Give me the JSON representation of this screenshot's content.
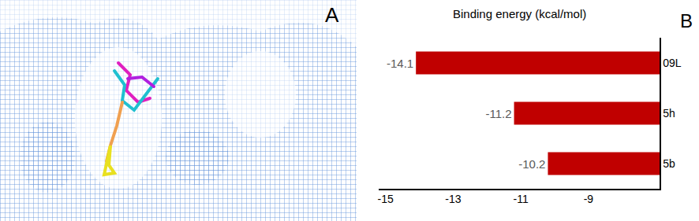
{
  "chart_data": {
    "type": "bar",
    "title": "Binding energy (kcal/mol)",
    "orientation": "horizontal",
    "categories": [
      "09L",
      "5h",
      "5b"
    ],
    "values": [
      -14.1,
      -11.2,
      -10.2
    ],
    "color": "#c00000",
    "data_labels": true,
    "xlim": [
      -15.2,
      -6.9
    ],
    "xticks": [
      -15,
      -13,
      -11,
      -9
    ],
    "grid": false,
    "annotations": [
      "B"
    ]
  },
  "image_panel": {
    "label": "A"
  }
}
